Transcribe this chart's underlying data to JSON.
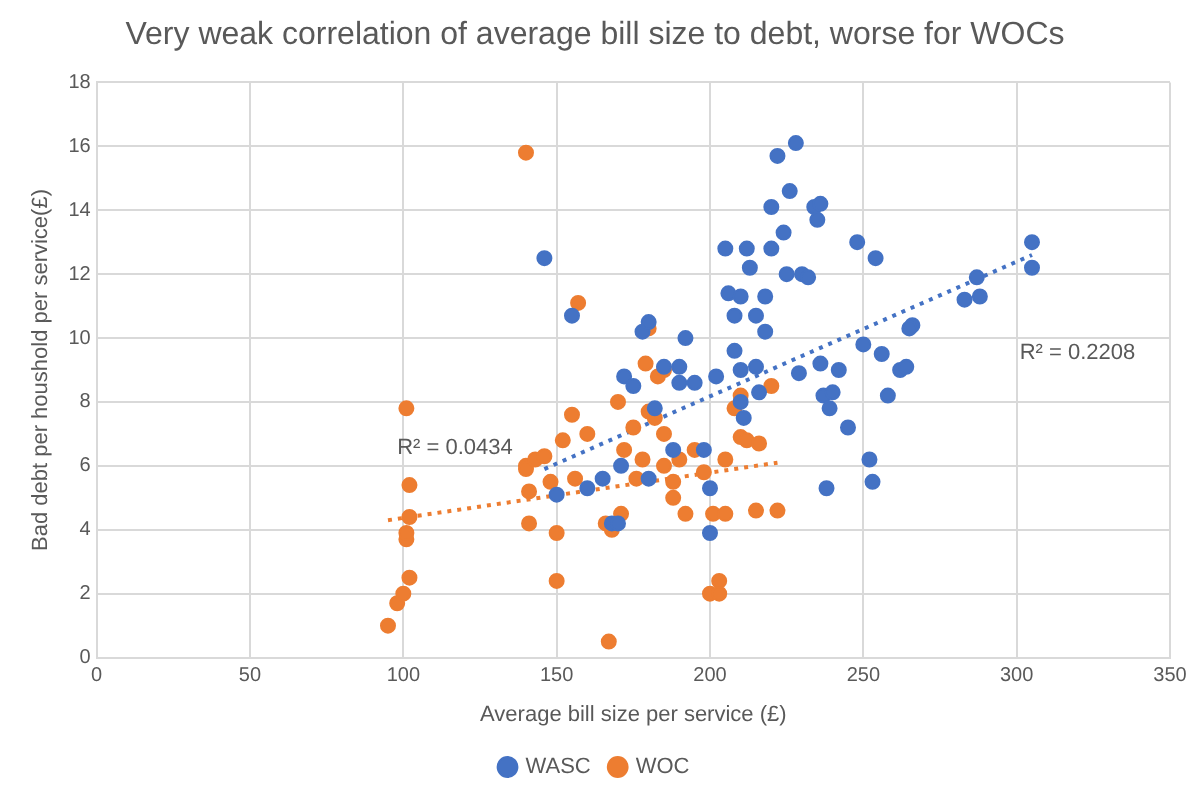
{
  "chart_data": {
    "type": "scatter",
    "title": "Very weak correlation of average bill size to debt, worse for WOCs",
    "xlabel": "Average bill size per service (£)",
    "ylabel": "Bad debt per houshold per service(£)",
    "xlim": [
      0,
      350
    ],
    "xticks": [
      0,
      50,
      100,
      150,
      200,
      250,
      300,
      350
    ],
    "ylim": [
      0,
      18
    ],
    "yticks": [
      0,
      2,
      4,
      6,
      8,
      10,
      12,
      14,
      16,
      18
    ],
    "grid": true,
    "legend": "bottom",
    "marker": "circle",
    "series": [
      {
        "name": "WASC",
        "color": "#4472c4",
        "x": [
          146,
          155,
          160,
          150,
          165,
          168,
          170,
          171,
          172,
          175,
          178,
          180,
          180,
          182,
          185,
          188,
          190,
          190,
          192,
          195,
          198,
          200,
          200,
          202,
          205,
          206,
          208,
          208,
          210,
          210,
          210,
          211,
          212,
          213,
          215,
          215,
          216,
          218,
          218,
          220,
          220,
          222,
          224,
          225,
          226,
          228,
          229,
          230,
          232,
          234,
          235,
          236,
          236,
          237,
          238,
          239,
          240,
          242,
          245,
          248,
          250,
          252,
          253,
          254,
          256,
          258,
          262,
          264,
          266,
          283,
          287,
          288,
          305,
          305,
          265
        ],
        "values": [
          12.5,
          10.7,
          5.3,
          5.1,
          5.6,
          4.2,
          4.2,
          6.0,
          8.8,
          8.5,
          10.2,
          10.5,
          5.6,
          7.8,
          9.1,
          6.5,
          8.6,
          9.1,
          10.0,
          8.6,
          6.5,
          3.9,
          5.3,
          8.8,
          12.8,
          11.4,
          10.7,
          9.6,
          11.3,
          9.0,
          8.0,
          7.5,
          12.8,
          12.2,
          10.7,
          9.1,
          8.3,
          11.3,
          10.2,
          14.1,
          12.8,
          15.7,
          13.3,
          12.0,
          14.6,
          16.1,
          8.9,
          12.0,
          11.9,
          14.1,
          13.7,
          14.2,
          9.2,
          8.2,
          5.3,
          7.8,
          8.3,
          9.0,
          7.2,
          13.0,
          9.8,
          6.2,
          5.5,
          12.5,
          9.5,
          8.2,
          9.0,
          9.1,
          10.4,
          11.2,
          11.9,
          11.3,
          13.0,
          12.2,
          10.3
        ]
      },
      {
        "name": "WOC",
        "color": "#ed7d31",
        "x": [
          95,
          98,
          100,
          102,
          101,
          101,
          102,
          102,
          101,
          140,
          141,
          141,
          140,
          140,
          143,
          146,
          148,
          150,
          150,
          152,
          155,
          156,
          157,
          166,
          167,
          168,
          170,
          171,
          172,
          175,
          176,
          178,
          179,
          180,
          180,
          182,
          183,
          185,
          185,
          188,
          188,
          190,
          192,
          195,
          198,
          200,
          201,
          203,
          203,
          205,
          205,
          208,
          210,
          212,
          215,
          216,
          222,
          220,
          210,
          185,
          160
        ],
        "values": [
          1.0,
          1.7,
          2.0,
          2.5,
          3.7,
          3.9,
          4.4,
          5.4,
          7.8,
          15.8,
          4.2,
          5.2,
          6.0,
          5.9,
          6.2,
          6.3,
          5.5,
          3.9,
          2.4,
          6.8,
          7.6,
          5.6,
          11.1,
          4.2,
          0.5,
          4.0,
          8.0,
          4.5,
          6.5,
          7.2,
          5.6,
          6.2,
          9.2,
          7.7,
          10.3,
          7.5,
          8.8,
          7.0,
          6.0,
          5.0,
          5.5,
          6.2,
          4.5,
          6.5,
          5.8,
          2.0,
          4.5,
          2.0,
          2.4,
          4.5,
          6.2,
          7.8,
          6.9,
          6.8,
          4.6,
          6.7,
          4.6,
          8.5,
          8.2,
          9.0,
          7.0
        ]
      },
      {
        "type": "line",
        "color": "#4472c4",
        "line_style": "dotted",
        "marker": "none",
        "x": [
          146,
          305
        ],
        "values": [
          5.9,
          12.6
        ]
      },
      {
        "type": "line",
        "color": "#ed7d31",
        "line_style": "dotted",
        "marker": "none",
        "x": [
          95,
          222
        ],
        "values": [
          4.3,
          6.1
        ]
      }
    ],
    "annotations": [
      "R² = 0.0434",
      "R² = 0.2208"
    ]
  }
}
